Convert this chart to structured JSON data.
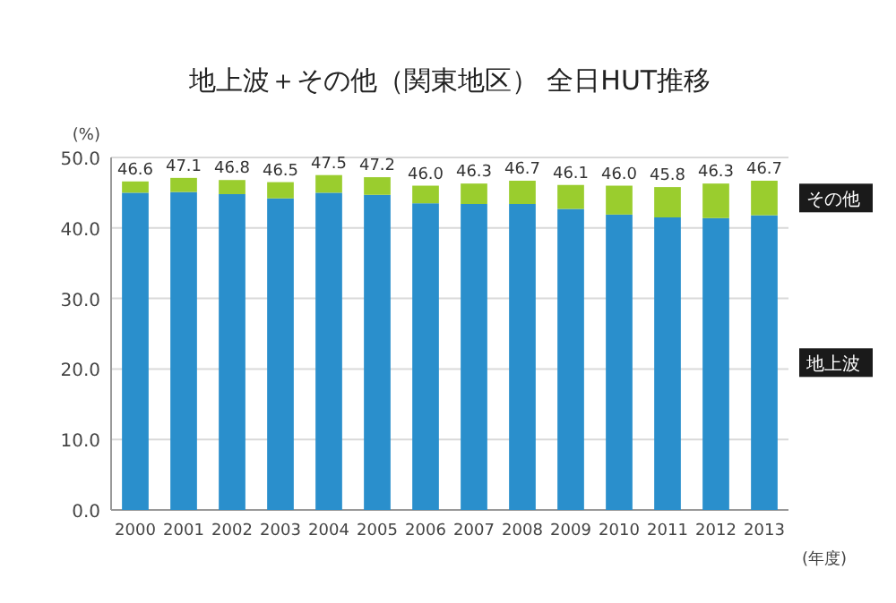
{
  "chart_data": {
    "type": "bar",
    "title": "地上波＋その他（関東地区） 全日HUT推移",
    "ylabel": "(%)",
    "xlabel": "(年度)",
    "categories": [
      "2000",
      "2001",
      "2002",
      "2003",
      "2004",
      "2005",
      "2006",
      "2007",
      "2008",
      "2009",
      "2010",
      "2011",
      "2012",
      "2013"
    ],
    "stacked": true,
    "series": [
      {
        "name": "地上波",
        "color": "#2a8fcc",
        "values": [
          45.0,
          45.1,
          44.8,
          44.2,
          45.0,
          44.7,
          43.5,
          43.4,
          43.4,
          42.7,
          41.9,
          41.5,
          41.4,
          41.8
        ]
      },
      {
        "name": "その他",
        "color": "#9acd2e",
        "values": [
          1.6,
          2.0,
          2.0,
          2.3,
          2.5,
          2.5,
          2.5,
          2.9,
          3.3,
          3.4,
          4.1,
          4.3,
          4.9,
          4.9
        ]
      }
    ],
    "totals": [
      "46.6",
      "47.1",
      "46.8",
      "46.5",
      "47.5",
      "47.2",
      "46.0",
      "46.3",
      "46.7",
      "46.1",
      "46.0",
      "45.8",
      "46.3",
      "46.7"
    ],
    "ylim": [
      0,
      50
    ],
    "yticks": [
      {
        "value": 0,
        "label": "0.0"
      },
      {
        "value": 10,
        "label": "10.0"
      },
      {
        "value": 20,
        "label": "20.0"
      },
      {
        "value": 30,
        "label": "30.0"
      },
      {
        "value": 40,
        "label": "40.0"
      },
      {
        "value": 50,
        "label": "50.0"
      }
    ],
    "grid": "y"
  }
}
